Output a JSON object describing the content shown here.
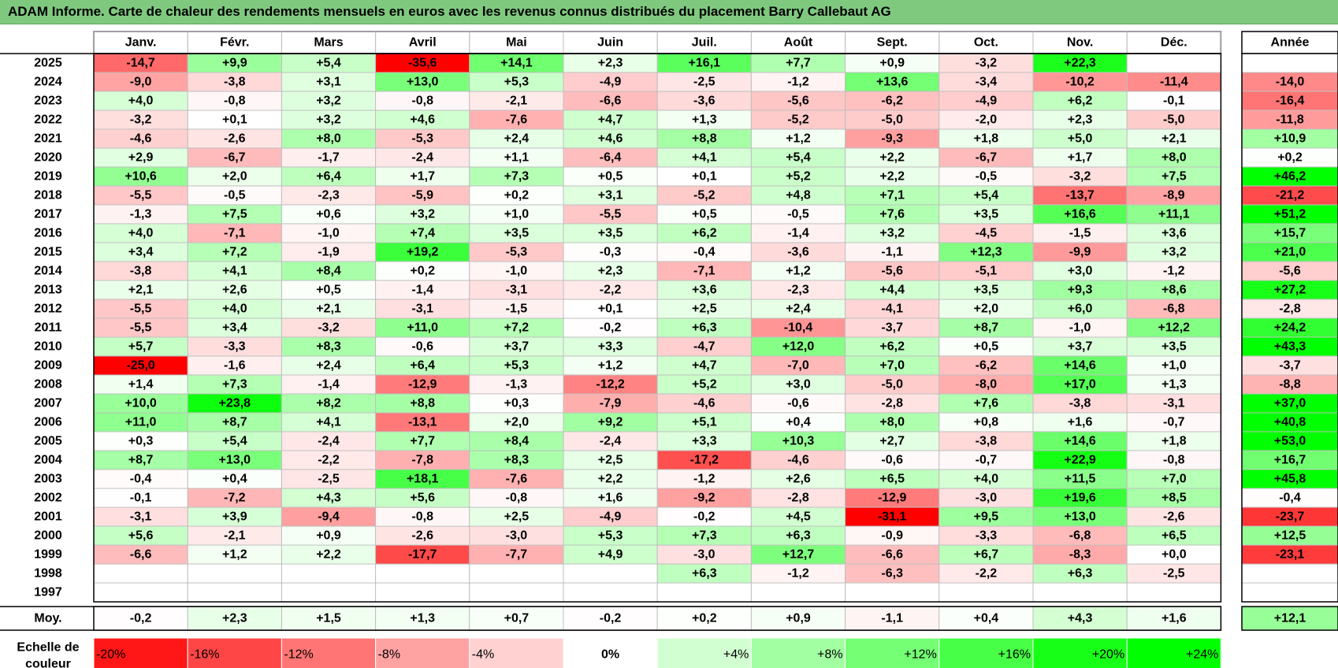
{
  "title": "ADAM Informe. Carte de chaleur des rendements mensuels en euros avec les revenus connus distribués du placement Barry Callebaut AG",
  "chart_data": {
    "type": "heatmap",
    "title": "ADAM Informe. Carte de chaleur des rendements mensuels en euros avec les revenus connus distribués du placement Barry Callebaut AG",
    "columns": [
      "Janv.",
      "Févr.",
      "Mars",
      "Avril",
      "Mai",
      "Juin",
      "Juil.",
      "Août",
      "Sept.",
      "Oct.",
      "Nov.",
      "Déc."
    ],
    "year_header": "Année",
    "rows": [
      {
        "label": "2025",
        "values": [
          "-14,7",
          "+9,9",
          "+5,4",
          "-35,6",
          "+14,1",
          "+2,3",
          "+16,1",
          "+7,7",
          "+0,9",
          "-3,2",
          "+22,3",
          ""
        ],
        "year": ""
      },
      {
        "label": "2024",
        "values": [
          "-9,0",
          "-3,8",
          "+3,1",
          "+13,0",
          "+5,3",
          "-4,9",
          "-2,5",
          "-1,2",
          "+13,6",
          "-3,4",
          "-10,2",
          "-11,4"
        ],
        "year": "-14,0"
      },
      {
        "label": "2023",
        "values": [
          "+4,0",
          "-0,8",
          "+3,2",
          "-0,8",
          "-2,1",
          "-6,6",
          "-3,6",
          "-5,6",
          "-6,2",
          "-4,9",
          "+6,2",
          "-0,1"
        ],
        "year": "-16,4"
      },
      {
        "label": "2022",
        "values": [
          "-3,2",
          "+0,1",
          "+3,2",
          "+4,6",
          "-7,6",
          "+4,7",
          "+1,3",
          "-5,2",
          "-5,0",
          "-2,0",
          "+2,3",
          "-5,0"
        ],
        "year": "-11,8"
      },
      {
        "label": "2021",
        "values": [
          "-4,6",
          "-2,6",
          "+8,0",
          "-5,3",
          "+2,4",
          "+4,6",
          "+8,8",
          "+1,2",
          "-9,3",
          "+1,8",
          "+5,0",
          "+2,1"
        ],
        "year": "+10,9"
      },
      {
        "label": "2020",
        "values": [
          "+2,9",
          "-6,7",
          "-1,7",
          "-2,4",
          "+1,1",
          "-6,4",
          "+4,1",
          "+5,4",
          "+2,2",
          "-6,7",
          "+1,7",
          "+8,0"
        ],
        "year": "+0,2"
      },
      {
        "label": "2019",
        "values": [
          "+10,6",
          "+2,0",
          "+6,4",
          "+1,7",
          "+7,3",
          "+0,5",
          "+0,1",
          "+5,2",
          "+2,2",
          "-0,5",
          "-3,2",
          "+7,5"
        ],
        "year": "+46,2"
      },
      {
        "label": "2018",
        "values": [
          "-5,5",
          "-0,5",
          "-2,3",
          "-5,9",
          "+0,2",
          "+3,1",
          "-5,2",
          "+4,8",
          "+7,1",
          "+5,4",
          "-13,7",
          "-8,9"
        ],
        "year": "-21,2"
      },
      {
        "label": "2017",
        "values": [
          "-1,3",
          "+7,5",
          "+0,6",
          "+3,2",
          "+1,0",
          "-5,5",
          "+0,5",
          "-0,5",
          "+7,6",
          "+3,5",
          "+16,6",
          "+11,1"
        ],
        "year": "+51,2"
      },
      {
        "label": "2016",
        "values": [
          "+4,0",
          "-7,1",
          "-1,0",
          "+7,4",
          "+3,5",
          "+3,5",
          "+6,2",
          "-1,4",
          "+3,2",
          "-4,5",
          "-1,5",
          "+3,6"
        ],
        "year": "+15,7"
      },
      {
        "label": "2015",
        "values": [
          "+3,4",
          "+7,2",
          "-1,9",
          "+19,2",
          "-5,3",
          "-0,3",
          "-0,4",
          "-3,6",
          "-1,1",
          "+12,3",
          "-9,9",
          "+3,2"
        ],
        "year": "+21,0"
      },
      {
        "label": "2014",
        "values": [
          "-3,8",
          "+4,1",
          "+8,4",
          "+0,2",
          "-1,0",
          "+2,3",
          "-7,1",
          "+1,2",
          "-5,6",
          "-5,1",
          "+3,0",
          "-1,2"
        ],
        "year": "-5,6"
      },
      {
        "label": "2013",
        "values": [
          "+2,1",
          "+2,6",
          "+0,5",
          "-1,4",
          "-3,1",
          "-2,2",
          "+3,6",
          "-2,3",
          "+4,4",
          "+3,5",
          "+9,3",
          "+8,6"
        ],
        "year": "+27,2"
      },
      {
        "label": "2012",
        "values": [
          "-5,5",
          "+4,0",
          "+2,1",
          "-3,1",
          "-1,5",
          "+0,1",
          "+2,5",
          "+2,4",
          "-4,1",
          "+2,0",
          "+6,0",
          "-6,8"
        ],
        "year": "-2,8"
      },
      {
        "label": "2011",
        "values": [
          "-5,5",
          "+3,4",
          "-3,2",
          "+11,0",
          "+7,2",
          "-0,2",
          "+6,3",
          "-10,4",
          "-3,7",
          "+8,7",
          "-1,0",
          "+12,2"
        ],
        "year": "+24,2"
      },
      {
        "label": "2010",
        "values": [
          "+5,7",
          "-3,3",
          "+8,3",
          "-0,6",
          "+3,7",
          "+3,3",
          "-4,7",
          "+12,0",
          "+6,2",
          "+0,5",
          "+3,7",
          "+3,5"
        ],
        "year": "+43,3"
      },
      {
        "label": "2009",
        "values": [
          "-25,0",
          "-1,6",
          "+2,4",
          "+6,4",
          "+5,3",
          "+1,2",
          "+4,7",
          "-7,0",
          "+7,0",
          "-6,2",
          "+14,6",
          "+1,0"
        ],
        "year": "-3,7"
      },
      {
        "label": "2008",
        "values": [
          "+1,4",
          "+7,3",
          "-1,4",
          "-12,9",
          "-1,3",
          "-12,2",
          "+5,2",
          "+3,0",
          "-5,0",
          "-8,0",
          "+17,0",
          "+1,3"
        ],
        "year": "-8,8"
      },
      {
        "label": "2007",
        "values": [
          "+10,0",
          "+23,8",
          "+8,2",
          "+8,8",
          "+0,3",
          "-7,9",
          "-4,6",
          "-0,6",
          "-2,8",
          "+7,6",
          "-3,8",
          "-3,1"
        ],
        "year": "+37,0"
      },
      {
        "label": "2006",
        "values": [
          "+11,0",
          "+8,7",
          "+4,1",
          "-13,1",
          "+2,0",
          "+9,2",
          "+5,1",
          "+0,4",
          "+8,0",
          "+0,8",
          "+1,6",
          "-0,7"
        ],
        "year": "+40,8"
      },
      {
        "label": "2005",
        "values": [
          "+0,3",
          "+5,4",
          "-2,4",
          "+7,7",
          "+8,4",
          "-2,4",
          "+3,3",
          "+10,3",
          "+2,7",
          "-3,8",
          "+14,6",
          "+1,8"
        ],
        "year": "+53,0"
      },
      {
        "label": "2004",
        "values": [
          "+8,7",
          "+13,0",
          "-2,2",
          "-7,8",
          "+8,3",
          "+2,5",
          "-17,2",
          "-4,6",
          "-0,6",
          "-0,7",
          "+22,9",
          "-0,8"
        ],
        "year": "+16,7"
      },
      {
        "label": "2003",
        "values": [
          "-0,4",
          "+0,4",
          "-2,5",
          "+18,1",
          "-7,6",
          "+2,2",
          "-1,2",
          "+2,6",
          "+6,5",
          "+4,0",
          "+11,5",
          "+7,0"
        ],
        "year": "+45,8"
      },
      {
        "label": "2002",
        "values": [
          "-0,1",
          "-7,2",
          "+4,3",
          "+5,6",
          "-0,8",
          "+1,6",
          "-9,2",
          "-2,8",
          "-12,9",
          "-3,0",
          "+19,6",
          "+8,5"
        ],
        "year": "-0,4"
      },
      {
        "label": "2001",
        "values": [
          "-3,1",
          "+3,9",
          "-9,4",
          "-0,8",
          "+2,5",
          "-4,9",
          "-0,2",
          "+4,5",
          "-31,1",
          "+9,5",
          "+13,0",
          "-2,6"
        ],
        "year": "-23,7"
      },
      {
        "label": "2000",
        "values": [
          "+5,6",
          "-2,1",
          "+0,9",
          "-2,6",
          "-3,0",
          "+5,3",
          "+7,3",
          "+6,3",
          "-0,9",
          "-3,3",
          "-6,8",
          "+6,5"
        ],
        "year": "+12,5"
      },
      {
        "label": "1999",
        "values": [
          "-6,6",
          "+1,2",
          "+2,2",
          "-17,7",
          "-7,7",
          "+4,9",
          "-3,0",
          "+12,7",
          "-6,6",
          "+6,7",
          "-8,3",
          "+0,0"
        ],
        "year": "-23,1"
      },
      {
        "label": "1998",
        "values": [
          "",
          "",
          "",
          "",
          "",
          "",
          "+6,3",
          "-1,2",
          "-6,3",
          "-2,2",
          "+6,3",
          "-2,5"
        ],
        "year": ""
      },
      {
        "label": "1997",
        "values": [
          "",
          "",
          "",
          "",
          "",
          "",
          "",
          "",
          "",
          "",
          "",
          ""
        ],
        "year": ""
      }
    ],
    "average": {
      "label": "Moy.",
      "values": [
        "-0,2",
        "+2,3",
        "+1,5",
        "+1,3",
        "+0,7",
        "-0,2",
        "+0,2",
        "+0,9",
        "-1,1",
        "+0,4",
        "+4,3",
        "+1,6"
      ],
      "year": "+12,1"
    },
    "scale": {
      "label_line1": "Echelle de",
      "label_line2": "couleur",
      "stops": [
        "-20%",
        "-16%",
        "-12%",
        "-8%",
        "-4%",
        "0%",
        "+4%",
        "+8%",
        "+12%",
        "+16%",
        "+20%",
        "+24%"
      ]
    },
    "colors": {
      "negative_max": "#ff0000",
      "neutral": "#ffffff",
      "positive_max": "#00ff00",
      "title_bg": "#7fc97f"
    }
  }
}
